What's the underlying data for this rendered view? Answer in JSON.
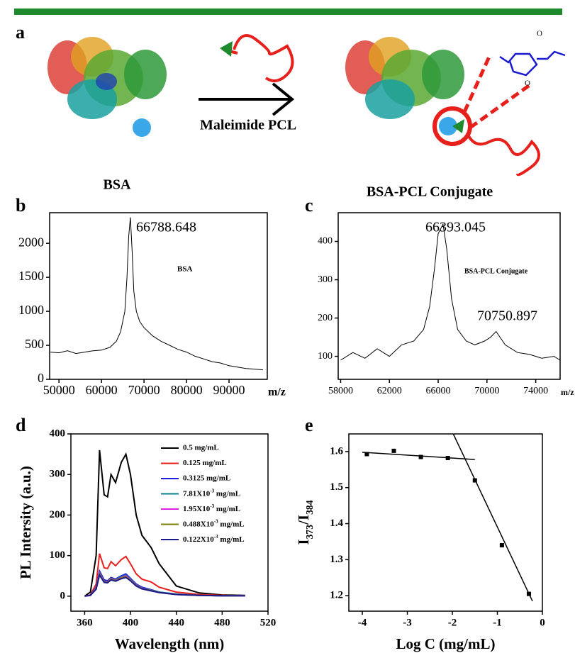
{
  "scheme": {
    "panel": "a",
    "reagent": "Maleimide PCL",
    "left_label": "BSA",
    "right_label": "BSA-PCL Conjugate"
  },
  "chart_data": [
    {
      "type": "line",
      "panel": "b",
      "xlabel": "m/z",
      "x": [
        48000,
        50000,
        52000,
        54000,
        56000,
        58000,
        60000,
        62000,
        63500,
        64500,
        65500,
        66000,
        66400,
        66800,
        67200,
        67600,
        68200,
        69000,
        70000,
        72000,
        74000,
        76000,
        78000,
        80000,
        82000,
        84000,
        86000,
        88000,
        90000,
        92000,
        94000,
        96000,
        98000
      ],
      "series": [
        {
          "color": "#000000",
          "values": [
            400,
            390,
            420,
            380,
            400,
            420,
            430,
            470,
            560,
            700,
            1000,
            1500,
            2100,
            2380,
            1900,
            1300,
            1000,
            850,
            760,
            640,
            560,
            500,
            440,
            400,
            340,
            300,
            260,
            240,
            200,
            180,
            160,
            150,
            140
          ]
        }
      ],
      "xlim": [
        47800,
        99000
      ],
      "ylim": [
        0,
        2450
      ],
      "xticks": [
        50000,
        60000,
        70000,
        80000,
        90000
      ],
      "yticks": [
        0,
        500,
        1000,
        1500,
        2000
      ],
      "annotations": [
        "66788.648",
        "BSA"
      ]
    },
    {
      "type": "line",
      "panel": "c",
      "xlabel": "m/z",
      "x": [
        58000,
        59000,
        60000,
        61000,
        62000,
        63000,
        64000,
        64800,
        65300,
        65700,
        66000,
        66393,
        66700,
        67100,
        67600,
        68300,
        69000,
        69800,
        70300,
        70750,
        71500,
        72500,
        73500,
        74500,
        75500,
        76000
      ],
      "series": [
        {
          "color": "#000000",
          "values": [
            90,
            110,
            95,
            120,
            100,
            130,
            140,
            170,
            230,
            330,
            420,
            445,
            380,
            250,
            170,
            140,
            130,
            140,
            150,
            165,
            130,
            110,
            105,
            95,
            100,
            90
          ]
        }
      ],
      "xlim": [
        57800,
        76000
      ],
      "ylim": [
        40,
        475
      ],
      "xticks": [
        58000,
        62000,
        66000,
        70000,
        74000
      ],
      "yticks": [
        100,
        200,
        300,
        400
      ],
      "annotations": [
        "66393.045",
        "BSA-PCL Conjugate",
        "70750.897"
      ]
    },
    {
      "type": "line",
      "panel": "d",
      "xlabel": "Wavelength (nm)",
      "ylabel": "PL Intersity (a.u.)",
      "x": [
        360,
        365,
        370,
        373,
        377,
        380,
        383,
        387,
        392,
        396,
        400,
        405,
        410,
        418,
        425,
        440,
        460,
        480,
        500
      ],
      "series": [
        {
          "name": "0.5 mg/mL",
          "color": "#000000",
          "values": [
            0,
            10,
            100,
            360,
            250,
            245,
            300,
            280,
            330,
            350,
            300,
            200,
            150,
            120,
            80,
            25,
            8,
            3,
            2
          ]
        },
        {
          "name": "0.125 mg/mL",
          "color": "#e8201c",
          "values": [
            0,
            3,
            30,
            105,
            70,
            68,
            85,
            75,
            90,
            98,
            80,
            55,
            42,
            35,
            22,
            10,
            4,
            2,
            1
          ]
        },
        {
          "name": "0.3125 mg/mL",
          "color": "#1f1fe0",
          "values": [
            0,
            2,
            22,
            62,
            40,
            38,
            46,
            42,
            50,
            55,
            44,
            30,
            22,
            16,
            10,
            5,
            2,
            1,
            1
          ]
        },
        {
          "name": [
            "7.81X10",
            "-3",
            " mg/mL"
          ],
          "color": "#0a7f8a",
          "values": [
            0,
            2,
            20,
            58,
            37,
            36,
            44,
            40,
            48,
            52,
            42,
            28,
            20,
            15,
            10,
            5,
            2,
            1,
            1
          ]
        },
        {
          "name": [
            "1.95X10",
            "-3",
            " mg/mL"
          ],
          "color": "#e020e0",
          "values": [
            0,
            2,
            19,
            56,
            36,
            35,
            43,
            39,
            46,
            50,
            40,
            27,
            19,
            14,
            9,
            4,
            2,
            1,
            1
          ]
        },
        {
          "name": [
            "0.488X10",
            "-3",
            " mg/mL"
          ],
          "color": "#7f7f10",
          "values": [
            0,
            2,
            18,
            54,
            35,
            34,
            42,
            38,
            45,
            48,
            39,
            26,
            18,
            14,
            9,
            4,
            2,
            1,
            1
          ]
        },
        {
          "name": [
            "0.122X10",
            "-3",
            " mg/mL"
          ],
          "color": "#1a1a8a",
          "values": [
            0,
            2,
            17,
            52,
            34,
            33,
            40,
            37,
            43,
            46,
            38,
            25,
            18,
            13,
            9,
            4,
            2,
            1,
            1
          ]
        }
      ],
      "xlim": [
        348,
        520
      ],
      "ylim": [
        -37,
        400
      ],
      "xticks": [
        360,
        400,
        440,
        480,
        520
      ],
      "yticks": [
        0,
        100,
        200,
        300,
        400
      ]
    },
    {
      "type": "scatter",
      "panel": "e",
      "xlabel": "Log C (mg/mL)",
      "ylabel": [
        "I",
        "373",
        "/I",
        "384"
      ],
      "x": [
        -3.9,
        -3.3,
        -2.7,
        -2.1,
        -1.5,
        -0.9,
        -0.3
      ],
      "values": [
        1.593,
        1.602,
        1.585,
        1.582,
        1.52,
        1.34,
        1.205
      ],
      "color": "#000000",
      "fit_lines": [
        {
          "x": [
            -4,
            -1.5
          ],
          "values": [
            1.598,
            1.578
          ]
        },
        {
          "x": [
            -1.98,
            -0.22
          ],
          "values": [
            1.649,
            1.185
          ]
        }
      ],
      "xlim": [
        -4.3,
        0
      ],
      "ylim": [
        1.157,
        1.649
      ],
      "xticks": [
        -4,
        -3,
        -2,
        -1,
        0
      ],
      "yticks": [
        1.2,
        1.3,
        1.4,
        1.5,
        1.6
      ]
    }
  ]
}
